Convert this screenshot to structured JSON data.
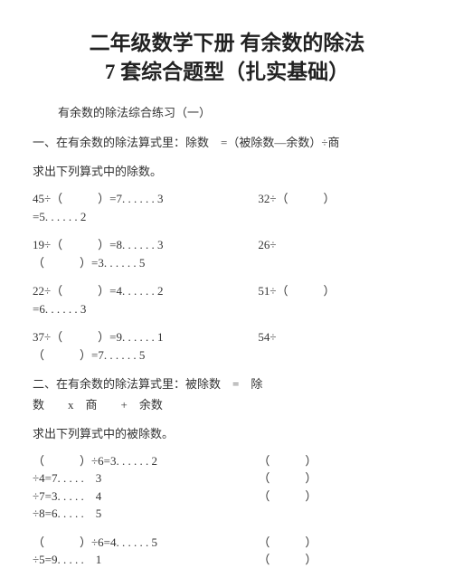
{
  "title_line1": "二年级数学下册 有余数的除法",
  "title_line2": "7 套综合题型（扎实基础）",
  "subtitle": "有余数的除法综合练习（一）",
  "section1": {
    "heading": "一、在有余数的除法算式里：除数　=（被除数—余数）÷商",
    "instruction": "求出下列算式中的除数。",
    "rows": [
      {
        "left": "45÷（　　　）=7. . . . . . 3",
        "right": "32÷（　　　）",
        "left2": "=5. . . . . . 2"
      },
      {
        "left": "19÷（　　　）=8. . . . . . 3",
        "right": "26÷",
        "left2": "（　　　）=3. . . . . . 5"
      },
      {
        "left": "22÷（　　　）=4. . . . . . 2",
        "right": "51÷（　　　）",
        "left2": "=6. . . . . . 3"
      },
      {
        "left": "37÷（　　　）=9. . . . . . 1",
        "right": "54÷",
        "left2": "（　　　）=7. . . . . . 5"
      }
    ]
  },
  "section2": {
    "heading_l1": "二、在有余数的除法算式里：被除数　=　除",
    "heading_l2": "数　　x　商　　+　余数",
    "instruction": "求出下列算式中的被除数。",
    "rows": [
      {
        "left": "（　　　）÷6=3. . . . . . 2",
        "right": "（　　　）",
        "left2": "÷4=7. . . . .　3",
        "right2": "（　　　）",
        "left3": "÷7=3. . . . .　4",
        "right3": "（　　　）",
        "left4": "÷8=6. . . . .　5"
      },
      {
        "left": "（　　　）÷6=4. . . . . . 5",
        "right": "（　　　）",
        "left2": "÷5=9. . . . .　1",
        "right2": "（　　　）"
      }
    ]
  },
  "colors": {
    "background": "#ffffff",
    "text": "#333333",
    "title": "#222222"
  },
  "typography": {
    "title_fontsize": 23,
    "body_fontsize": 13,
    "font_family": "SimSun"
  }
}
